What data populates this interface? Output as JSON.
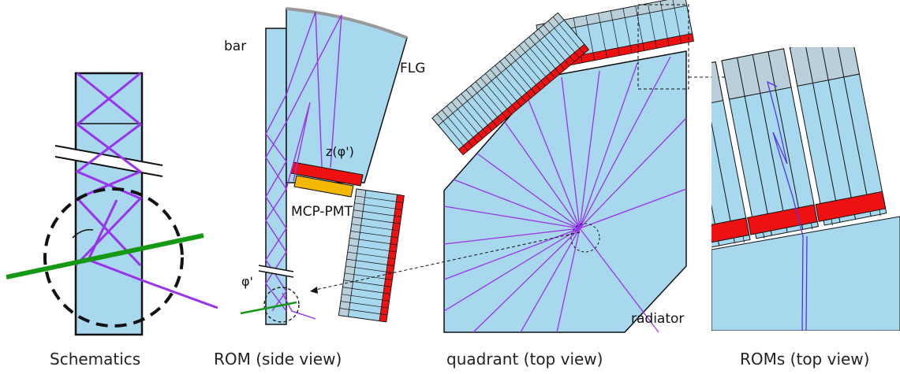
{
  "captions": {
    "schematics": "Schematics",
    "rom_side": "ROM (side view)",
    "quadrant": "quadrant (top view)",
    "roms_top": "ROMs (top view)"
  },
  "labels": {
    "bar": "bar",
    "flg": "FLG",
    "z_phi": "z(φ')",
    "mcp_pmt": "MCP-PMT",
    "phi": "φ'",
    "radiator": "radiator"
  },
  "colors": {
    "glass": "#a8d8ee",
    "ray": "#9933ee",
    "track": "#159915",
    "sensor": "#ee1111",
    "pmt": "#f5b800",
    "module": "#b9cfd9",
    "outline": "#111111"
  }
}
